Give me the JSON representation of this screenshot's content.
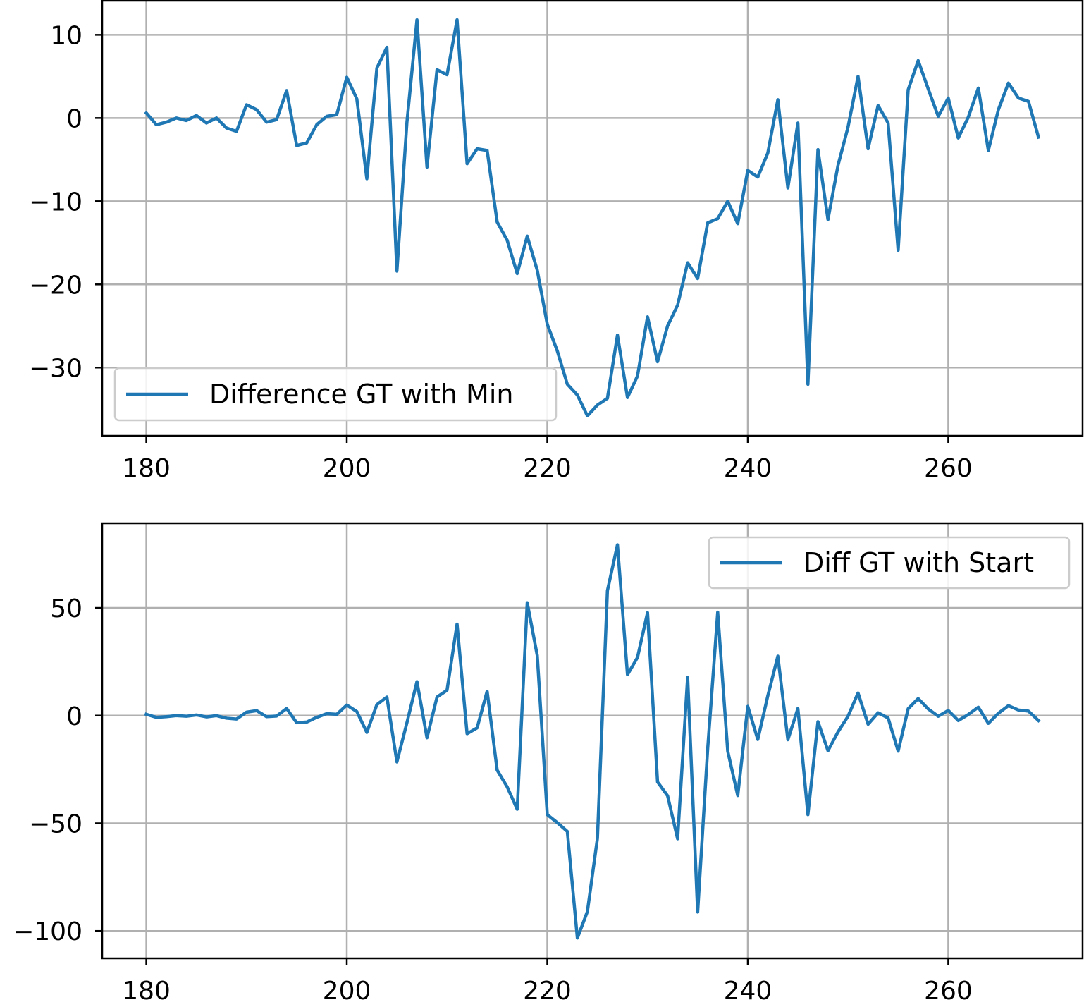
{
  "chart_data": [
    {
      "type": "line",
      "x_start": 180,
      "x_step": 1,
      "xlim": [
        175.6,
        273.4
      ],
      "ylim": [
        -38.2,
        14.1
      ],
      "x_ticks": [
        180,
        200,
        220,
        240,
        260
      ],
      "y_ticks": [
        10,
        0,
        -10,
        -20,
        -30
      ],
      "y_tick_labels": [
        "10",
        "0",
        "−10",
        "−20",
        "−30"
      ],
      "grid": true,
      "legend_position": "lower-left",
      "series": [
        {
          "name": "Difference GT with Min",
          "color": "#1f77b4",
          "values": [
            0.6,
            -0.8,
            -0.5,
            0.0,
            -0.3,
            0.3,
            -0.6,
            0.0,
            -1.2,
            -1.6,
            1.6,
            1.0,
            -0.5,
            -0.2,
            3.3,
            -3.3,
            -3.0,
            -0.8,
            0.2,
            0.4,
            4.9,
            2.3,
            -7.3,
            6.0,
            8.5,
            -18.4,
            -0.5,
            11.8,
            -5.9,
            5.8,
            5.2,
            11.8,
            -5.5,
            -3.7,
            -3.9,
            -12.5,
            -14.7,
            -18.7,
            -14.2,
            -18.3,
            -24.8,
            -28.0,
            -32.0,
            -33.3,
            -35.8,
            -34.5,
            -33.7,
            -26.1,
            -33.6,
            -31.0,
            -23.9,
            -29.3,
            -25.0,
            -22.5,
            -17.4,
            -19.3,
            -12.6,
            -12.1,
            -10.0,
            -12.7,
            -6.3,
            -7.1,
            -4.2,
            2.2,
            -8.4,
            -0.6,
            -32.0,
            -3.8,
            -12.2,
            -5.7,
            -1.1,
            5.0,
            -3.7,
            1.5,
            -0.6,
            -15.9,
            3.4,
            6.9,
            3.5,
            0.2,
            2.4,
            -2.4,
            0.1,
            3.6,
            -3.9,
            1.0,
            4.2,
            2.4,
            2.0,
            -2.3
          ]
        }
      ]
    },
    {
      "type": "line",
      "x_start": 180,
      "x_step": 1,
      "xlim": [
        175.6,
        273.4
      ],
      "ylim": [
        -112.7,
        89.3
      ],
      "x_ticks": [
        180,
        200,
        220,
        240,
        260
      ],
      "y_ticks": [
        50,
        0,
        -50,
        -100
      ],
      "y_tick_labels": [
        "50",
        "0",
        "−50",
        "−100"
      ],
      "grid": true,
      "legend_position": "upper-right",
      "series": [
        {
          "name": "Diff GT with Start",
          "color": "#1f77b4",
          "values": [
            0.6,
            -0.8,
            -0.5,
            0.0,
            -0.3,
            0.3,
            -0.6,
            0.0,
            -1.2,
            -1.6,
            1.6,
            2.3,
            -0.5,
            -0.2,
            3.3,
            -3.3,
            -3.0,
            -0.8,
            0.9,
            0.6,
            4.9,
            1.9,
            -7.8,
            5.1,
            8.6,
            -21.5,
            -3.3,
            15.8,
            -10.3,
            8.6,
            11.8,
            42.5,
            -8.4,
            -5.7,
            11.3,
            -25.3,
            -33.1,
            -43.5,
            52.4,
            27.9,
            -46.0,
            -49.7,
            -53.8,
            -103.3,
            -91.0,
            -57.0,
            58.0,
            79.3,
            19.0,
            27.0,
            47.8,
            -30.8,
            -37.2,
            -57.2,
            17.8,
            -91.2,
            -15.5,
            48.0,
            -16.5,
            -37.1,
            4.3,
            -11.1,
            9.2,
            27.6,
            -11.2,
            3.3,
            -46.0,
            -2.8,
            -16.3,
            -7.6,
            -0.3,
            10.5,
            -4.0,
            1.3,
            -1.1,
            -16.5,
            3.2,
            7.9,
            3.1,
            -0.3,
            2.4,
            -2.3,
            0.5,
            3.9,
            -3.6,
            1.1,
            4.6,
            2.6,
            2.1,
            -2.3
          ]
        }
      ]
    }
  ]
}
